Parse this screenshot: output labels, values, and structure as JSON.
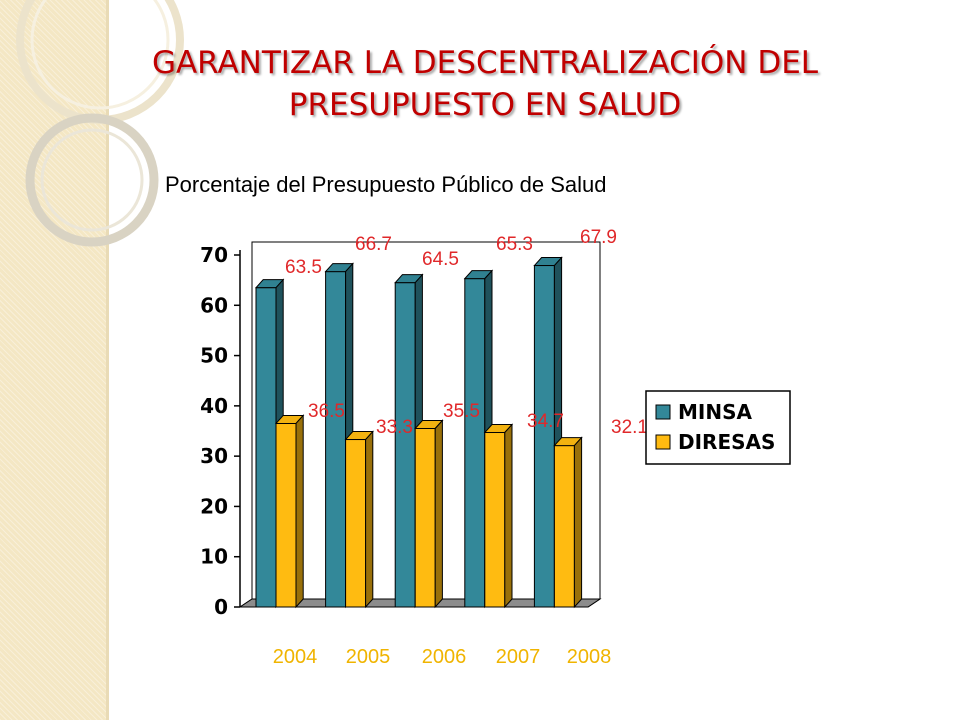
{
  "slide": {
    "title_line1": "GARANTIZAR LA DESCENTRALIZACIÓN DEL",
    "title_line2": "PRESUPUESTO EN SALUD"
  },
  "chart_data": {
    "type": "bar",
    "title": "Porcentaje del Presupuesto Público de Salud",
    "categories": [
      "2004",
      "2005",
      "2006",
      "2007",
      "2008"
    ],
    "series": [
      {
        "name": "MINSA",
        "values": [
          63.5,
          66.7,
          64.5,
          65.3,
          67.9
        ],
        "color": "#338899"
      },
      {
        "name": "DIRESAS",
        "values": [
          36.5,
          33.3,
          35.5,
          34.7,
          32.1
        ],
        "color": "#ffbb11"
      }
    ],
    "ylim": [
      0,
      70
    ],
    "yticks": [
      0,
      10,
      20,
      30,
      40,
      50,
      60,
      70
    ],
    "grid": false,
    "legend": "right",
    "label_color": "#e0282a",
    "category_color": "#f0b400"
  },
  "colors": {
    "title": "#c00000",
    "side_band": "#f4e7c4"
  }
}
